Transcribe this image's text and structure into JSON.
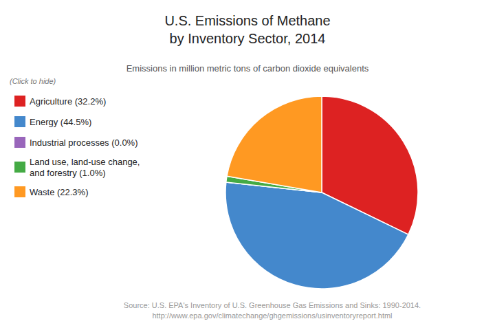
{
  "chart_data": {
    "type": "pie",
    "title": "U.S. Emissions of Methane\nby Inventory Sector, 2014",
    "subtitle": "Emissions in million metric tons of carbon dioxide equivalents",
    "categories": [
      "Agriculture (32.2%)",
      "Energy (44.5%)",
      "Industrial processes (0.0%)",
      "Land use, land-use change,\nand forestry (1.0%)",
      "Waste (22.3%)"
    ],
    "values": [
      32.2,
      44.5,
      0.0,
      1.0,
      22.3
    ],
    "colors": [
      "#dd2222",
      "#4488cc",
      "#9966bb",
      "#44aa44",
      "#ff9922"
    ],
    "legend": "left",
    "annotations": [
      "(Click to hide)",
      "Source: U.S. EPA's Inventory of U.S. Greenhouse Gas Emissions and Sinks: 1990-2014.",
      "http://www.epa.gov/climatechange/ghgemissions/usinventoryreport.html"
    ]
  }
}
